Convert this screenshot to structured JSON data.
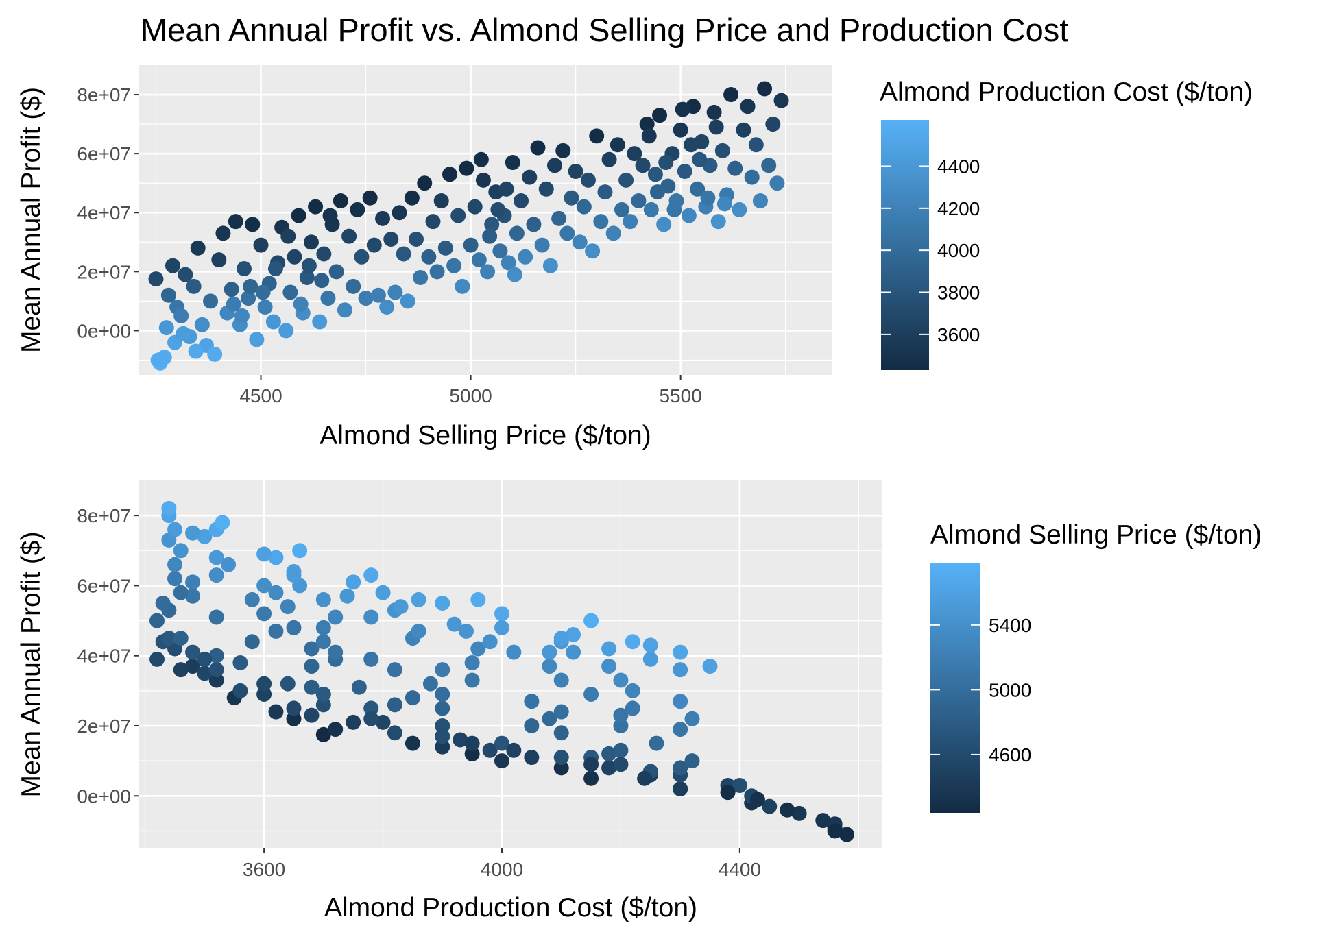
{
  "title": "Mean Annual Profit vs. Almond Selling Price and Production Cost",
  "colors": {
    "low": "#132B43",
    "high": "#56B1F7",
    "panel": "#EBEBEB",
    "grid": "#FFFFFF",
    "tick_text": "#4D4D4D",
    "text": "#000000"
  },
  "chart_data": [
    {
      "type": "scatter",
      "title": "",
      "xlabel": "Almond Selling Price ($/ton)",
      "ylabel": "Mean Annual Profit ($)",
      "xlim": [
        4210,
        5860
      ],
      "ylim": [
        -15000000,
        90000000
      ],
      "x_ticks": [
        4500,
        5000,
        5500
      ],
      "x_tick_labels": [
        "4500",
        "5000",
        "5500"
      ],
      "y_ticks": [
        0,
        20000000,
        40000000,
        60000000,
        80000000
      ],
      "y_tick_labels": [
        "0e+00",
        "2e+07",
        "4e+07",
        "6e+07",
        "8e+07"
      ],
      "grid": true,
      "color_by": "Almond Production Cost ($/ton)",
      "legend": {
        "title": "Almond Production Cost ($/ton)",
        "position": "right",
        "range": [
          3430,
          4620
        ],
        "ticks": [
          3600,
          3800,
          4000,
          4200,
          4400
        ],
        "tick_labels": [
          "3600",
          "3800",
          "4000",
          "4200",
          "4400"
        ]
      },
      "points": [
        [
          4250,
          17500000,
          3700
        ],
        [
          4260,
          -11000000,
          4580
        ],
        [
          4270,
          -9000000,
          4560
        ],
        [
          4280,
          12000000,
          3950
        ],
        [
          4290,
          22000000,
          3650
        ],
        [
          4300,
          8000000,
          4100
        ],
        [
          4310,
          5000000,
          4150
        ],
        [
          4320,
          19000000,
          3720
        ],
        [
          4330,
          -2000000,
          4420
        ],
        [
          4340,
          15000000,
          3850
        ],
        [
          4350,
          28000000,
          3550
        ],
        [
          4360,
          2000000,
          4300
        ],
        [
          4370,
          -5000000,
          4500
        ],
        [
          4380,
          10000000,
          4000
        ],
        [
          4390,
          -8000000,
          4560
        ],
        [
          4400,
          24000000,
          3620
        ],
        [
          4410,
          33000000,
          3520
        ],
        [
          4420,
          6000000,
          4250
        ],
        [
          4430,
          14000000,
          3900
        ],
        [
          4440,
          37000000,
          3480
        ],
        [
          4450,
          2000000,
          4300
        ],
        [
          4460,
          21000000,
          3750
        ],
        [
          4470,
          11000000,
          4050
        ],
        [
          4480,
          36000000,
          3460
        ],
        [
          4490,
          -3000000,
          4450
        ],
        [
          4500,
          29000000,
          3600
        ],
        [
          4510,
          8000000,
          4180
        ],
        [
          4520,
          16000000,
          3930
        ],
        [
          4530,
          3000000,
          4380
        ],
        [
          4540,
          23000000,
          3680
        ],
        [
          4550,
          35000000,
          3500
        ],
        [
          4560,
          0,
          4420
        ],
        [
          4570,
          13000000,
          3980
        ],
        [
          4580,
          25000000,
          3650
        ],
        [
          4590,
          39000000,
          3420
        ],
        [
          4600,
          6000000,
          4300
        ],
        [
          4610,
          18000000,
          3820
        ],
        [
          4620,
          30000000,
          3560
        ],
        [
          4630,
          42000000,
          3450
        ],
        [
          4640,
          3000000,
          4400
        ],
        [
          4650,
          26000000,
          3700
        ],
        [
          4660,
          11000000,
          4100
        ],
        [
          4670,
          36000000,
          3520
        ],
        [
          4680,
          20000000,
          3900
        ],
        [
          4690,
          44000000,
          3430
        ],
        [
          4700,
          7000000,
          4250
        ],
        [
          4710,
          32000000,
          3640
        ],
        [
          4720,
          15000000,
          4000
        ],
        [
          4730,
          41000000,
          3480
        ],
        [
          4740,
          25000000,
          3780
        ],
        [
          4750,
          11000000,
          4150
        ],
        [
          4760,
          45000000,
          3440
        ],
        [
          4770,
          29000000,
          3700
        ],
        [
          4780,
          12000000,
          4180
        ],
        [
          4790,
          38000000,
          3560
        ],
        [
          4800,
          8000000,
          4300
        ],
        [
          4810,
          31000000,
          3680
        ],
        [
          4820,
          13000000,
          4200
        ],
        [
          4830,
          40000000,
          3520
        ],
        [
          4840,
          26000000,
          3820
        ],
        [
          4850,
          10000000,
          4320
        ],
        [
          4860,
          45000000,
          3460
        ],
        [
          4870,
          31000000,
          3760
        ],
        [
          4880,
          18000000,
          4100
        ],
        [
          4890,
          50000000,
          3420
        ],
        [
          4900,
          25000000,
          3900
        ],
        [
          4910,
          37000000,
          3680
        ],
        [
          4920,
          20000000,
          4050
        ],
        [
          4930,
          44000000,
          3580
        ],
        [
          4940,
          28000000,
          3850
        ],
        [
          4950,
          53000000,
          3440
        ],
        [
          4960,
          22000000,
          4080
        ],
        [
          4970,
          39000000,
          3720
        ],
        [
          4980,
          15000000,
          4260
        ],
        [
          4990,
          55000000,
          3430
        ],
        [
          5000,
          29000000,
          3900
        ],
        [
          5010,
          42000000,
          3680
        ],
        [
          5020,
          24000000,
          4100
        ],
        [
          5030,
          51000000,
          3520
        ],
        [
          5040,
          20000000,
          4200
        ],
        [
          5050,
          36000000,
          3820
        ],
        [
          5060,
          47000000,
          3620
        ],
        [
          5070,
          27000000,
          4050
        ],
        [
          5080,
          39000000,
          3780
        ],
        [
          5090,
          23000000,
          4200
        ],
        [
          5100,
          57000000,
          3480
        ],
        [
          5110,
          33000000,
          3950
        ],
        [
          5120,
          44000000,
          3700
        ],
        [
          5130,
          25000000,
          4220
        ],
        [
          5140,
          52000000,
          3600
        ],
        [
          5150,
          36000000,
          3900
        ],
        [
          5160,
          62000000,
          3450
        ],
        [
          5170,
          29000000,
          4150
        ],
        [
          5180,
          48000000,
          3700
        ],
        [
          5190,
          22000000,
          4320
        ],
        [
          5200,
          56000000,
          3580
        ],
        [
          5210,
          38000000,
          3950
        ],
        [
          5220,
          61000000,
          3480
        ],
        [
          5230,
          33000000,
          4100
        ],
        [
          5240,
          45000000,
          3850
        ],
        [
          5250,
          54000000,
          3640
        ],
        [
          5260,
          30000000,
          4220
        ],
        [
          5270,
          42000000,
          3960
        ],
        [
          5280,
          51000000,
          3720
        ],
        [
          5290,
          27000000,
          4300
        ],
        [
          5300,
          66000000,
          3450
        ],
        [
          5310,
          37000000,
          4080
        ],
        [
          5320,
          47000000,
          3860
        ],
        [
          5330,
          58000000,
          3620
        ],
        [
          5340,
          33000000,
          4200
        ],
        [
          5350,
          63000000,
          3520
        ],
        [
          5360,
          41000000,
          4020
        ],
        [
          5370,
          51000000,
          3780
        ],
        [
          5380,
          37000000,
          4180
        ],
        [
          5390,
          60000000,
          3600
        ],
        [
          5400,
          44000000,
          3980
        ],
        [
          5410,
          56000000,
          3700
        ],
        [
          5420,
          70000000,
          3460
        ],
        [
          5430,
          41000000,
          4120
        ],
        [
          5440,
          53000000,
          3820
        ],
        [
          5450,
          73000000,
          3440
        ],
        [
          5460,
          36000000,
          4300
        ],
        [
          5470,
          49000000,
          3920
        ],
        [
          5480,
          60000000,
          3660
        ],
        [
          5490,
          44000000,
          4100
        ],
        [
          5500,
          68000000,
          3520
        ],
        [
          5510,
          54000000,
          3830
        ],
        [
          5520,
          39000000,
          4250
        ],
        [
          5530,
          76000000,
          3450
        ],
        [
          5540,
          48000000,
          4000
        ],
        [
          5550,
          64000000,
          3650
        ],
        [
          5560,
          42000000,
          4180
        ],
        [
          5570,
          56000000,
          3860
        ],
        [
          5580,
          74000000,
          3500
        ],
        [
          5590,
          37000000,
          4350
        ],
        [
          5600,
          61000000,
          3750
        ],
        [
          5610,
          46000000,
          4120
        ],
        [
          5620,
          80000000,
          3440
        ],
        [
          5630,
          55000000,
          3900
        ],
        [
          5640,
          41000000,
          4300
        ],
        [
          5650,
          68000000,
          3620
        ],
        [
          5660,
          76000000,
          3520
        ],
        [
          5670,
          52000000,
          4000
        ],
        [
          5680,
          63000000,
          3780
        ],
        [
          5690,
          44000000,
          4220
        ],
        [
          5700,
          82000000,
          3440
        ],
        [
          5710,
          56000000,
          3960
        ],
        [
          5720,
          70000000,
          3660
        ],
        [
          5730,
          50000000,
          4150
        ],
        [
          5740,
          78000000,
          3530
        ],
        [
          4255,
          -10000000,
          4560
        ],
        [
          4275,
          1000000,
          4380
        ],
        [
          4295,
          -4000000,
          4480
        ],
        [
          4315,
          -1000000,
          4430
        ],
        [
          4345,
          -7000000,
          4540
        ],
        [
          4435,
          9000000,
          4150
        ],
        [
          4455,
          5000000,
          4240
        ],
        [
          4475,
          15000000,
          3950
        ],
        [
          4505,
          13000000,
          4020
        ],
        [
          4535,
          21000000,
          3800
        ],
        [
          4565,
          32000000,
          3600
        ],
        [
          4595,
          9000000,
          4200
        ],
        [
          4615,
          22000000,
          3780
        ],
        [
          4645,
          17000000,
          3900
        ],
        [
          4665,
          39000000,
          3500
        ],
        [
          5025,
          58000000,
          3460
        ],
        [
          5045,
          32000000,
          3880
        ],
        [
          5065,
          41000000,
          3720
        ],
        [
          5085,
          48000000,
          3650
        ],
        [
          5105,
          19000000,
          4300
        ],
        [
          5425,
          66000000,
          3540
        ],
        [
          5445,
          47000000,
          3940
        ],
        [
          5465,
          57000000,
          3740
        ],
        [
          5485,
          41000000,
          4080
        ],
        [
          5505,
          75000000,
          3480
        ],
        [
          5525,
          63000000,
          3650
        ],
        [
          5545,
          58000000,
          3800
        ],
        [
          5565,
          45000000,
          4100
        ],
        [
          5585,
          69000000,
          3600
        ],
        [
          5605,
          43000000,
          4250
        ]
      ]
    },
    {
      "type": "scatter",
      "title": "",
      "xlabel": "Almond Production Cost ($/ton)",
      "ylabel": "Mean Annual Profit ($)",
      "xlim": [
        3390,
        4640
      ],
      "ylim": [
        -15000000,
        90000000
      ],
      "x_ticks": [
        3600,
        4000,
        4400
      ],
      "x_tick_labels": [
        "3600",
        "4000",
        "4400"
      ],
      "y_ticks": [
        0,
        20000000,
        40000000,
        60000000,
        80000000
      ],
      "y_tick_labels": [
        "0e+00",
        "2e+07",
        "4e+07",
        "6e+07",
        "8e+07"
      ],
      "grid": true,
      "color_by": "Almond Selling Price ($/ton)",
      "legend": {
        "title": "Almond Selling Price ($/ton)",
        "position": "right",
        "range": [
          4240,
          5780
        ],
        "ticks": [
          4600,
          5000,
          5400
        ],
        "tick_labels": [
          "4600",
          "5000",
          "5400"
        ]
      }
    }
  ]
}
